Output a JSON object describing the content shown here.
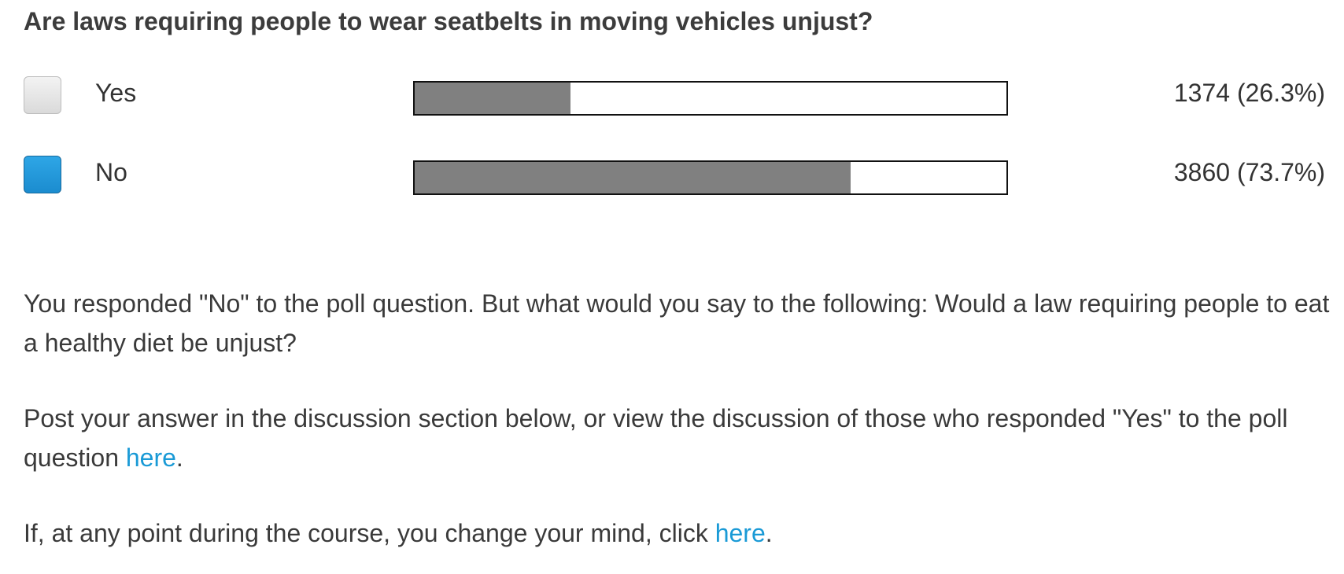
{
  "poll": {
    "question": "Are laws requiring people to wear seatbelts in moving vehicles unjust?",
    "options": [
      {
        "label": "Yes",
        "result": "1374 (26.3%)",
        "fraction": 0.263,
        "selected": false
      },
      {
        "label": "No",
        "result": "3860 (73.7%)",
        "fraction": 0.737,
        "selected": true
      }
    ],
    "colors": {
      "bar_fill": "#808080",
      "selected_checkbox": "#1b8ccf",
      "link": "#1a9ad6"
    }
  },
  "followup": {
    "p1": "You responded \"No\" to the poll question. But what would you say to the following: Would a law requiring people to eat a healthy diet be unjust?",
    "p2_text": "Post your answer in the discussion section below, or view the discussion of those who responded \"Yes\" to the poll question ",
    "p2_link": "here",
    "p2_end": ".",
    "p3_text": "If, at any point during the course, you change your mind, click ",
    "p3_link": "here",
    "p3_end": "."
  }
}
